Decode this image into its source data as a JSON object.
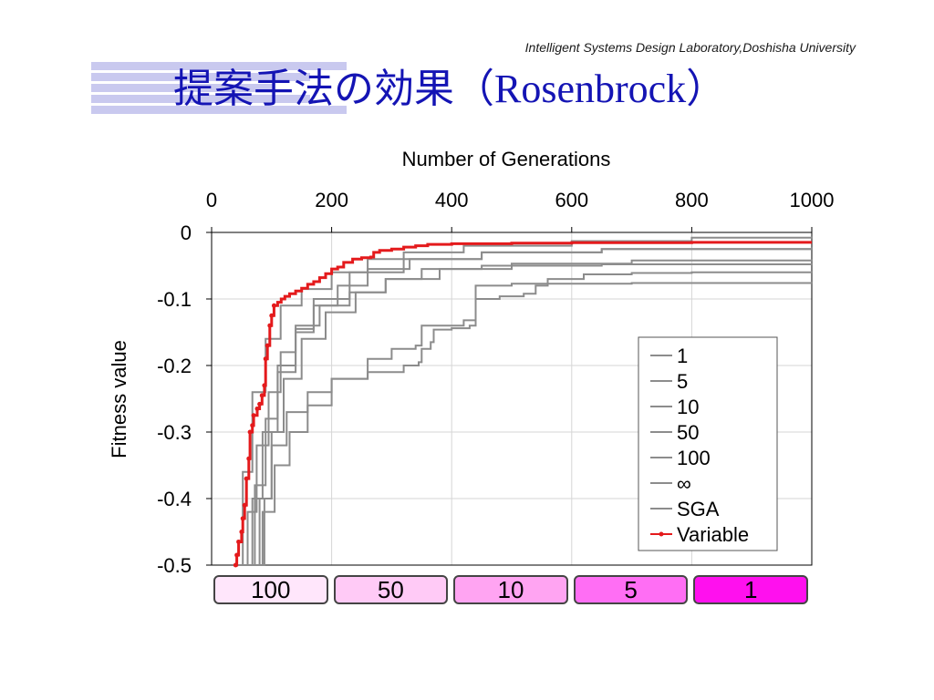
{
  "header": {
    "lab_name": "Intelligent Systems Design Laboratory,Doshisha University",
    "title": "提案手法の効果（Rosenbrock）"
  },
  "colors": {
    "title": "#1414b4",
    "header_stripes": "#c9c9ef",
    "gray_series": "#8c8c8c",
    "variable_series": "#e41a1c",
    "phase_fills": [
      "#ffe6fb",
      "#ffcaf6",
      "#ffa4f2",
      "#ff6ef4",
      "#ff10ee"
    ]
  },
  "chart_data": {
    "type": "line",
    "xlabel": "Number of Generations",
    "ylabel": "Fitness value",
    "xlim": [
      0,
      1000
    ],
    "ylim": [
      -0.5,
      0
    ],
    "x_ticks": [
      "0",
      "200",
      "400",
      "600",
      "800",
      "1000"
    ],
    "y_ticks": [
      "0",
      "-0.1",
      "-0.2",
      "-0.3",
      "-0.4",
      "-0.5"
    ],
    "x_tick_values": [
      0,
      200,
      400,
      600,
      800,
      1000
    ],
    "y_tick_values": [
      0,
      -0.1,
      -0.2,
      -0.3,
      -0.4,
      -0.5
    ],
    "x_axis_position": "top",
    "grid": true,
    "legend_position": "right-center",
    "series": [
      {
        "name": "1",
        "style": "gray",
        "points": [
          [
            48,
            -0.5
          ],
          [
            60,
            -0.42
          ],
          [
            75,
            -0.32
          ],
          [
            95,
            -0.24
          ],
          [
            115,
            -0.18
          ],
          [
            140,
            -0.14
          ],
          [
            180,
            -0.11
          ],
          [
            230,
            -0.09
          ],
          [
            290,
            -0.07
          ],
          [
            380,
            -0.055
          ],
          [
            500,
            -0.047
          ],
          [
            700,
            -0.042
          ],
          [
            1000,
            -0.04
          ]
        ]
      },
      {
        "name": "5",
        "style": "gray",
        "points": [
          [
            55,
            -0.5
          ],
          [
            68,
            -0.4
          ],
          [
            85,
            -0.3
          ],
          [
            110,
            -0.21
          ],
          [
            140,
            -0.15
          ],
          [
            170,
            -0.11
          ],
          [
            210,
            -0.08
          ],
          [
            260,
            -0.055
          ],
          [
            330,
            -0.04
          ],
          [
            450,
            -0.03
          ],
          [
            650,
            -0.025
          ],
          [
            1000,
            -0.022
          ]
        ]
      },
      {
        "name": "10",
        "style": "gray",
        "points": [
          [
            60,
            -0.5
          ],
          [
            72,
            -0.38
          ],
          [
            90,
            -0.28
          ],
          [
            110,
            -0.2
          ],
          [
            140,
            -0.145
          ],
          [
            170,
            -0.1
          ],
          [
            230,
            -0.06
          ],
          [
            320,
            -0.04
          ],
          [
            450,
            -0.03
          ],
          [
            650,
            -0.025
          ],
          [
            1000,
            -0.026
          ]
        ]
      },
      {
        "name": "50",
        "style": "gray",
        "points": [
          [
            65,
            -0.5
          ],
          [
            80,
            -0.4
          ],
          [
            100,
            -0.32
          ],
          [
            125,
            -0.27
          ],
          [
            160,
            -0.24
          ],
          [
            200,
            -0.22
          ],
          [
            260,
            -0.21
          ],
          [
            320,
            -0.2
          ],
          [
            345,
            -0.195
          ],
          [
            350,
            -0.175
          ],
          [
            365,
            -0.165
          ],
          [
            370,
            -0.146
          ],
          [
            400,
            -0.144
          ],
          [
            430,
            -0.14
          ],
          [
            440,
            -0.08
          ],
          [
            500,
            -0.077
          ],
          [
            700,
            -0.076
          ],
          [
            850,
            -0.076
          ],
          [
            1000,
            -0.074
          ]
        ]
      },
      {
        "name": "100",
        "style": "gray",
        "points": [
          [
            72,
            -0.5
          ],
          [
            85,
            -0.42
          ],
          [
            105,
            -0.35
          ],
          [
            130,
            -0.3
          ],
          [
            160,
            -0.26
          ],
          [
            200,
            -0.22
          ],
          [
            260,
            -0.19
          ],
          [
            300,
            -0.175
          ],
          [
            340,
            -0.17
          ],
          [
            350,
            -0.14
          ],
          [
            420,
            -0.132
          ],
          [
            440,
            -0.1
          ],
          [
            480,
            -0.096
          ],
          [
            520,
            -0.092
          ],
          [
            540,
            -0.08
          ],
          [
            560,
            -0.07
          ],
          [
            620,
            -0.063
          ],
          [
            700,
            -0.061
          ],
          [
            800,
            -0.06
          ],
          [
            1000,
            -0.058
          ]
        ]
      },
      {
        "name": "∞",
        "style": "gray",
        "points": [
          [
            78,
            -0.5
          ],
          [
            88,
            -0.4
          ],
          [
            100,
            -0.3
          ],
          [
            120,
            -0.22
          ],
          [
            150,
            -0.16
          ],
          [
            190,
            -0.12
          ],
          [
            240,
            -0.09
          ],
          [
            290,
            -0.07
          ],
          [
            350,
            -0.055
          ],
          [
            450,
            -0.05
          ],
          [
            650,
            -0.048
          ],
          [
            1000,
            -0.046
          ]
        ]
      },
      {
        "name": "SGA",
        "style": "gray",
        "points": [
          [
            40,
            -0.5
          ],
          [
            52,
            -0.36
          ],
          [
            68,
            -0.24
          ],
          [
            90,
            -0.16
          ],
          [
            115,
            -0.11
          ],
          [
            150,
            -0.085
          ],
          [
            200,
            -0.06
          ],
          [
            260,
            -0.04
          ],
          [
            320,
            -0.03
          ],
          [
            420,
            -0.02
          ],
          [
            600,
            -0.013
          ],
          [
            800,
            -0.008
          ],
          [
            1000,
            -0.006
          ]
        ]
      },
      {
        "name": "Variable",
        "style": "red",
        "points": [
          [
            40,
            -0.5
          ],
          [
            42,
            -0.485
          ],
          [
            45,
            -0.465
          ],
          [
            50,
            -0.45
          ],
          [
            52,
            -0.43
          ],
          [
            55,
            -0.41
          ],
          [
            58,
            -0.37
          ],
          [
            62,
            -0.34
          ],
          [
            64,
            -0.3
          ],
          [
            68,
            -0.29
          ],
          [
            70,
            -0.275
          ],
          [
            76,
            -0.265
          ],
          [
            80,
            -0.258
          ],
          [
            84,
            -0.245
          ],
          [
            88,
            -0.23
          ],
          [
            90,
            -0.19
          ],
          [
            93,
            -0.17
          ],
          [
            97,
            -0.14
          ],
          [
            100,
            -0.125
          ],
          [
            104,
            -0.11
          ],
          [
            110,
            -0.105
          ],
          [
            116,
            -0.1
          ],
          [
            122,
            -0.096
          ],
          [
            130,
            -0.092
          ],
          [
            140,
            -0.088
          ],
          [
            150,
            -0.084
          ],
          [
            160,
            -0.078
          ],
          [
            170,
            -0.074
          ],
          [
            180,
            -0.068
          ],
          [
            190,
            -0.062
          ],
          [
            200,
            -0.055
          ],
          [
            210,
            -0.052
          ],
          [
            220,
            -0.045
          ],
          [
            235,
            -0.04
          ],
          [
            250,
            -0.038
          ],
          [
            265,
            -0.037
          ],
          [
            270,
            -0.03
          ],
          [
            280,
            -0.027
          ],
          [
            300,
            -0.025
          ],
          [
            320,
            -0.022
          ],
          [
            340,
            -0.02
          ],
          [
            360,
            -0.018
          ],
          [
            400,
            -0.017
          ],
          [
            500,
            -0.016
          ],
          [
            600,
            -0.0155
          ],
          [
            800,
            -0.015
          ],
          [
            1000,
            -0.015
          ]
        ]
      }
    ]
  },
  "legend": {
    "entries": [
      "1",
      "5",
      "10",
      "50",
      "100",
      "∞",
      "SGA",
      "Variable"
    ]
  },
  "phases": [
    {
      "label": "100",
      "start": 0,
      "end": 200
    },
    {
      "label": "50",
      "start": 200,
      "end": 400
    },
    {
      "label": "10",
      "start": 400,
      "end": 600
    },
    {
      "label": "5",
      "start": 600,
      "end": 800
    },
    {
      "label": "1",
      "start": 800,
      "end": 1000
    }
  ]
}
